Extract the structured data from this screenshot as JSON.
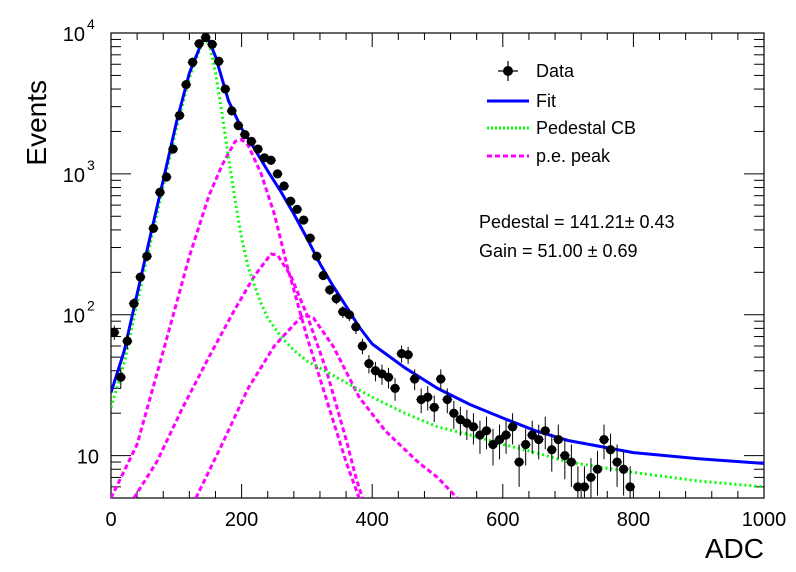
{
  "chart_data": {
    "type": "scatter",
    "xlabel": "ADC",
    "ylabel": "Events",
    "xlim": [
      0,
      1000
    ],
    "ylim": [
      5,
      10000
    ],
    "yscale": "log",
    "grid": false,
    "x_ticks": [
      0,
      200,
      400,
      600,
      800,
      1000
    ],
    "x_tick_labels": [
      "0",
      "200",
      "400",
      "600",
      "800",
      "1000"
    ],
    "y_ticks": [
      10,
      100,
      1000,
      10000
    ],
    "y_tick_labels": [
      "10",
      "10",
      "10",
      "10"
    ],
    "y_tick_exponents": [
      "",
      "2",
      "3",
      "4"
    ],
    "legend": {
      "position": "top-right",
      "entries": [
        {
          "label": "Data",
          "style": "marker",
          "color": "#000000"
        },
        {
          "label": "Fit",
          "style": "solid",
          "color": "#0000ff"
        },
        {
          "label": "Pedestal CB",
          "style": "dotted",
          "color": "#00ff00"
        },
        {
          "label": "p.e. peak",
          "style": "dashed",
          "color": "#ff00ff"
        }
      ]
    },
    "annotations": [
      "Pedestal = 141.21± 0.43",
      "Gain = 51.00 ± 0.69"
    ],
    "series": [
      {
        "name": "Data",
        "kind": "points",
        "color": "#000000",
        "points": [
          [
            5,
            75
          ],
          [
            15,
            36
          ],
          [
            25,
            65
          ],
          [
            35,
            120
          ],
          [
            45,
            185
          ],
          [
            55,
            260
          ],
          [
            65,
            410
          ],
          [
            75,
            740
          ],
          [
            85,
            950
          ],
          [
            95,
            1500
          ],
          [
            105,
            2600
          ],
          [
            115,
            4300
          ],
          [
            125,
            6200
          ],
          [
            135,
            8400
          ],
          [
            145,
            9300
          ],
          [
            155,
            8300
          ],
          [
            165,
            6300
          ],
          [
            175,
            4000
          ],
          [
            185,
            2800
          ],
          [
            195,
            2200
          ],
          [
            205,
            1900
          ],
          [
            215,
            1700
          ],
          [
            225,
            1500
          ],
          [
            235,
            1300
          ],
          [
            245,
            1250
          ],
          [
            255,
            1000
          ],
          [
            265,
            820
          ],
          [
            275,
            640
          ],
          [
            285,
            560
          ],
          [
            295,
            470
          ],
          [
            305,
            350
          ],
          [
            315,
            260
          ],
          [
            325,
            190
          ],
          [
            335,
            150
          ],
          [
            345,
            130
          ],
          [
            355,
            105
          ],
          [
            365,
            100
          ],
          [
            375,
            82
          ],
          [
            385,
            60
          ],
          [
            395,
            45
          ],
          [
            405,
            40
          ],
          [
            415,
            38
          ],
          [
            425,
            36
          ],
          [
            435,
            30
          ],
          [
            445,
            53
          ],
          [
            455,
            52
          ],
          [
            465,
            35
          ],
          [
            475,
            25
          ],
          [
            485,
            26
          ],
          [
            495,
            22
          ],
          [
            505,
            35
          ],
          [
            515,
            25
          ],
          [
            525,
            20
          ],
          [
            535,
            18
          ],
          [
            545,
            17
          ],
          [
            555,
            16
          ],
          [
            565,
            14
          ],
          [
            575,
            15
          ],
          [
            585,
            12
          ],
          [
            595,
            13
          ],
          [
            605,
            14
          ],
          [
            615,
            16
          ],
          [
            625,
            9
          ],
          [
            635,
            12
          ],
          [
            645,
            14
          ],
          [
            655,
            13
          ],
          [
            665,
            15
          ],
          [
            675,
            11
          ],
          [
            685,
            13
          ],
          [
            695,
            10
          ],
          [
            705,
            9
          ],
          [
            715,
            6
          ],
          [
            725,
            6
          ],
          [
            735,
            7
          ],
          [
            745,
            8
          ],
          [
            755,
            13
          ],
          [
            765,
            11
          ],
          [
            775,
            9
          ],
          [
            785,
            8
          ],
          [
            795,
            6
          ]
        ],
        "errors": [
          8.7,
          6.0,
          8.1,
          11.0,
          13.6,
          16.1,
          20.2,
          27.2,
          30.8,
          38.7,
          51.0,
          65.6,
          78.7,
          91.7,
          96.4,
          91.1,
          79.4,
          63.2,
          52.9,
          46.9,
          43.6,
          41.2,
          38.7,
          36.1,
          35.4,
          31.6,
          28.6,
          25.3,
          23.7,
          21.7,
          18.7,
          16.1,
          13.8,
          12.2,
          11.4,
          10.2,
          10.0,
          9.1,
          7.7,
          6.7,
          6.3,
          6.2,
          6.0,
          5.5,
          7.3,
          7.2,
          5.9,
          5.0,
          5.1,
          4.7,
          5.9,
          5.0,
          4.5,
          4.2,
          4.1,
          4.0,
          3.7,
          3.9,
          3.5,
          3.6,
          3.7,
          4.0,
          3.0,
          3.5,
          3.7,
          3.6,
          3.9,
          3.3,
          3.6,
          3.2,
          3.0,
          2.4,
          2.4,
          2.6,
          2.8,
          3.6,
          3.3,
          3.0,
          2.8,
          2.4
        ]
      },
      {
        "name": "Fit",
        "kind": "line",
        "color": "#0000ff",
        "points": [
          [
            0,
            28
          ],
          [
            20,
            55
          ],
          [
            40,
            140
          ],
          [
            60,
            360
          ],
          [
            80,
            900
          ],
          [
            100,
            2300
          ],
          [
            120,
            5200
          ],
          [
            140,
            8800
          ],
          [
            150,
            8900
          ],
          [
            160,
            6800
          ],
          [
            180,
            3300
          ],
          [
            200,
            2100
          ],
          [
            220,
            1500
          ],
          [
            240,
            1050
          ],
          [
            260,
            750
          ],
          [
            280,
            520
          ],
          [
            300,
            350
          ],
          [
            320,
            230
          ],
          [
            340,
            160
          ],
          [
            360,
            115
          ],
          [
            380,
            82
          ],
          [
            400,
            62
          ],
          [
            450,
            42
          ],
          [
            500,
            30
          ],
          [
            550,
            23
          ],
          [
            600,
            18.5
          ],
          [
            650,
            15
          ],
          [
            700,
            12.8
          ],
          [
            800,
            10.5
          ],
          [
            900,
            9.5
          ],
          [
            1000,
            8.8
          ]
        ]
      },
      {
        "name": "Pedestal CB",
        "kind": "line",
        "color": "#00ff00",
        "points": [
          [
            0,
            22
          ],
          [
            20,
            45
          ],
          [
            40,
            120
          ],
          [
            60,
            320
          ],
          [
            80,
            820
          ],
          [
            100,
            2100
          ],
          [
            120,
            4800
          ],
          [
            140,
            8600
          ],
          [
            150,
            8700
          ],
          [
            160,
            5200
          ],
          [
            170,
            2700
          ],
          [
            180,
            1300
          ],
          [
            190,
            650
          ],
          [
            200,
            350
          ],
          [
            210,
            220
          ],
          [
            220,
            160
          ],
          [
            230,
            120
          ],
          [
            240,
            95
          ],
          [
            260,
            70
          ],
          [
            280,
            56
          ],
          [
            300,
            47
          ],
          [
            350,
            35
          ],
          [
            400,
            26
          ],
          [
            450,
            20
          ],
          [
            500,
            16
          ],
          [
            550,
            14
          ],
          [
            600,
            12
          ],
          [
            650,
            10.5
          ],
          [
            700,
            9
          ],
          [
            800,
            7.6
          ],
          [
            900,
            6.6
          ],
          [
            1000,
            6
          ]
        ]
      },
      {
        "name": "p.e. peak 1",
        "kind": "line",
        "color": "#ff00ff",
        "points": [
          [
            0,
            5
          ],
          [
            40,
            12
          ],
          [
            80,
            55
          ],
          [
            120,
            260
          ],
          [
            150,
            700
          ],
          [
            170,
            1150
          ],
          [
            190,
            1700
          ],
          [
            200,
            1750
          ],
          [
            210,
            1600
          ],
          [
            230,
            1000
          ],
          [
            250,
            520
          ],
          [
            270,
            220
          ],
          [
            300,
            70
          ],
          [
            330,
            25
          ],
          [
            360,
            9
          ],
          [
            380,
            5
          ]
        ]
      },
      {
        "name": "p.e. peak 2",
        "kind": "line",
        "color": "#ff00ff",
        "points": [
          [
            35,
            5
          ],
          [
            70,
            9
          ],
          [
            110,
            22
          ],
          [
            150,
            50
          ],
          [
            190,
            110
          ],
          [
            220,
            190
          ],
          [
            245,
            270
          ],
          [
            255,
            265
          ],
          [
            275,
            190
          ],
          [
            300,
            100
          ],
          [
            330,
            40
          ],
          [
            360,
            13
          ],
          [
            375,
            7
          ],
          [
            385,
            5
          ]
        ]
      },
      {
        "name": "p.e. peak 3",
        "kind": "line",
        "color": "#ff00ff",
        "points": [
          [
            130,
            5
          ],
          [
            170,
            12
          ],
          [
            210,
            30
          ],
          [
            250,
            60
          ],
          [
            280,
            85
          ],
          [
            295,
            100
          ],
          [
            310,
            95
          ],
          [
            340,
            60
          ],
          [
            380,
            26
          ],
          [
            420,
            15
          ],
          [
            470,
            9
          ],
          [
            500,
            7
          ],
          [
            530,
            5
          ]
        ]
      }
    ]
  }
}
